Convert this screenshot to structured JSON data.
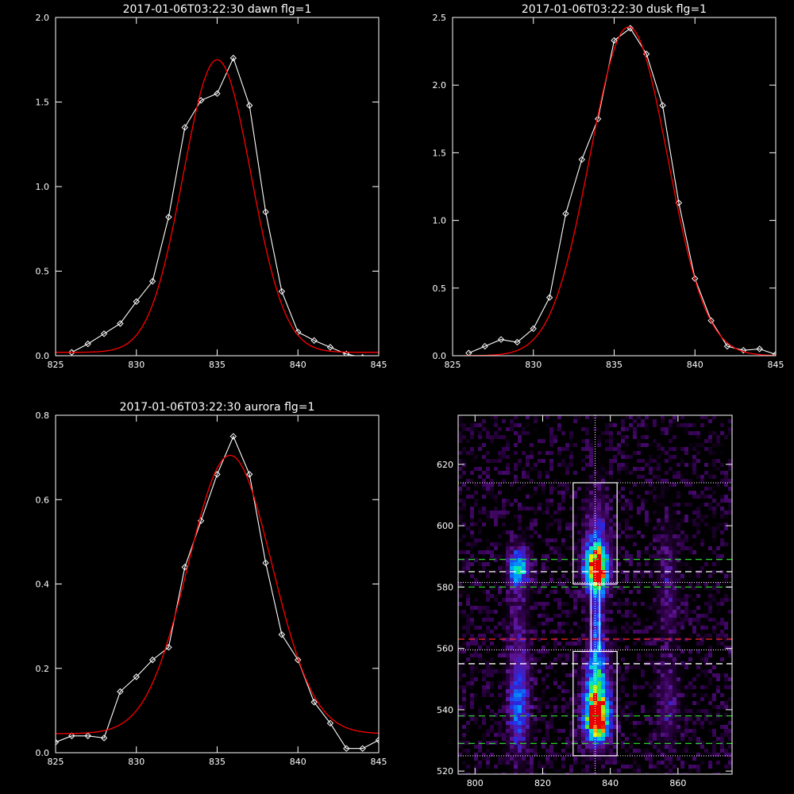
{
  "chart_data": [
    {
      "type": "line",
      "title": "2017-01-06T03:22:30 dawn flg=1",
      "xlim": [
        825,
        845
      ],
      "ylim": [
        0,
        2.0
      ],
      "xticks": [
        "825",
        "830",
        "835",
        "840",
        "845"
      ],
      "yticks": [
        "0.0",
        "0.5",
        "1.0",
        "1.5",
        "2.0"
      ],
      "series": [
        {
          "color": "#ffffff",
          "markers": "diamond",
          "x": [
            826,
            827,
            828,
            829,
            830,
            831,
            832,
            833,
            834,
            835,
            836,
            837,
            838,
            839,
            840,
            841,
            842,
            843,
            844,
            845
          ],
          "y": [
            0.02,
            0.07,
            0.13,
            0.19,
            0.32,
            0.44,
            0.82,
            1.35,
            1.51,
            1.55,
            1.76,
            1.48,
            0.85,
            0.38,
            0.14,
            0.09,
            0.05,
            0.01,
            -0.01,
            -0.02
          ]
        },
        {
          "color": "#ff0000",
          "fit": "gaussian",
          "peak": 1.73,
          "center": 835.0,
          "sigma": 2.1,
          "offset": 0.02,
          "x_range": [
            825,
            845
          ]
        }
      ]
    },
    {
      "type": "line",
      "title": "2017-01-06T03:22:30 dusk flg=1",
      "xlim": [
        825,
        845
      ],
      "ylim": [
        0,
        2.5
      ],
      "xticks": [
        "825",
        "830",
        "835",
        "840",
        "845"
      ],
      "yticks": [
        "0.0",
        "0.5",
        "1.0",
        "1.5",
        "2.0",
        "2.5"
      ],
      "series": [
        {
          "color": "#ffffff",
          "markers": "diamond",
          "x": [
            826,
            827,
            828,
            829,
            830,
            831,
            832,
            833,
            834,
            835,
            836,
            837,
            838,
            839,
            840,
            841,
            842,
            843,
            844,
            845
          ],
          "y": [
            0.02,
            0.07,
            0.12,
            0.1,
            0.2,
            0.43,
            1.05,
            1.45,
            1.75,
            2.33,
            2.42,
            2.23,
            1.85,
            1.13,
            0.57,
            0.26,
            0.07,
            0.04,
            0.05,
            0.01
          ]
        },
        {
          "color": "#ff0000",
          "fit": "gaussian",
          "peak": 2.43,
          "center": 835.9,
          "sigma": 2.4,
          "offset": 0.0,
          "x_range": [
            825.5,
            845
          ]
        }
      ]
    },
    {
      "type": "line",
      "title": "2017-01-06T03:22:30 aurora flg=1",
      "xlim": [
        825,
        845
      ],
      "ylim": [
        0,
        0.8
      ],
      "xticks": [
        "825",
        "830",
        "835",
        "840",
        "845"
      ],
      "yticks": [
        "0.0",
        "0.2",
        "0.4",
        "0.6",
        "0.8"
      ],
      "series": [
        {
          "color": "#ffffff",
          "markers": "diamond",
          "x": [
            825,
            826,
            827,
            828,
            829,
            830,
            831,
            832,
            833,
            834,
            835,
            836,
            837,
            838,
            839,
            840,
            841,
            842,
            843,
            844,
            845
          ],
          "y": [
            0.025,
            0.04,
            0.04,
            0.035,
            0.145,
            0.18,
            0.22,
            0.25,
            0.44,
            0.55,
            0.66,
            0.75,
            0.66,
            0.45,
            0.28,
            0.22,
            0.12,
            0.07,
            0.01,
            0.01,
            0.03
          ]
        },
        {
          "color": "#ff0000",
          "fit": "gaussian",
          "peak": 0.66,
          "center": 835.8,
          "sigma": 2.6,
          "offset": 0.045,
          "x_range": [
            825,
            845
          ]
        }
      ]
    },
    {
      "type": "heatmap",
      "xlim": [
        795,
        876
      ],
      "ylim": [
        519,
        636
      ],
      "xticks": [
        800,
        820,
        840,
        860
      ],
      "yticks": [
        520,
        540,
        560,
        580,
        600,
        620
      ],
      "blobs": [
        {
          "x": 836,
          "y": 586,
          "sx": 2.4,
          "sy": 5,
          "amp": 1.0
        },
        {
          "x": 836,
          "y": 537,
          "sx": 2.4,
          "sy": 5,
          "amp": 1.0
        },
        {
          "x": 836,
          "y": 547,
          "sx": 2.4,
          "sy": 9,
          "amp": 0.55
        },
        {
          "x": 836,
          "y": 568,
          "sx": 1.3,
          "sy": 11,
          "amp": 0.35
        },
        {
          "x": 836,
          "y": 596,
          "sx": 2.2,
          "sy": 10,
          "amp": 0.25
        },
        {
          "x": 813,
          "y": 586,
          "sx": 2.0,
          "sy": 4,
          "amp": 0.55
        },
        {
          "x": 813,
          "y": 542,
          "sx": 2.0,
          "sy": 10,
          "amp": 0.38
        },
        {
          "x": 813,
          "y": 565,
          "sx": 2.0,
          "sy": 14,
          "amp": 0.12
        },
        {
          "x": 857,
          "y": 580,
          "sx": 2.0,
          "sy": 12,
          "amp": 0.14
        },
        {
          "x": 857,
          "y": 542,
          "sx": 2.0,
          "sy": 9,
          "amp": 0.16
        }
      ],
      "boxes": [
        {
          "x": [
            829,
            842
          ],
          "y": [
            525,
            559
          ]
        },
        {
          "x": [
            829,
            842
          ],
          "y": [
            581,
            614
          ]
        },
        {
          "x": [
            834.3,
            836.8
          ],
          "y": [
            559,
            581
          ]
        }
      ],
      "vline_dotted": 835.5,
      "hlines": [
        {
          "y": 589,
          "color": "#2ecc2e",
          "dash": "dashed"
        },
        {
          "y": 585,
          "color": "#ffffff",
          "dash": "dashed"
        },
        {
          "y": 580,
          "color": "#2ecc2e",
          "dash": "dashed"
        },
        {
          "y": 563,
          "color": "#ff2a2a",
          "dash": "dashed"
        },
        {
          "y": 555,
          "color": "#ffffff",
          "dash": "dashed"
        },
        {
          "y": 538,
          "color": "#2ecc2e",
          "dash": "dashed"
        },
        {
          "y": 529,
          "color": "#2ecc2e",
          "dash": "dashed"
        },
        {
          "y": 614,
          "color": "#ffffff",
          "dash": "dotted"
        },
        {
          "y": 559.5,
          "color": "#ffffff",
          "dash": "dotted"
        },
        {
          "y": 581.5,
          "color": "#ffffff",
          "dash": "dotted"
        },
        {
          "y": 525,
          "color": "#ffffff",
          "dash": "dotted"
        }
      ]
    }
  ]
}
